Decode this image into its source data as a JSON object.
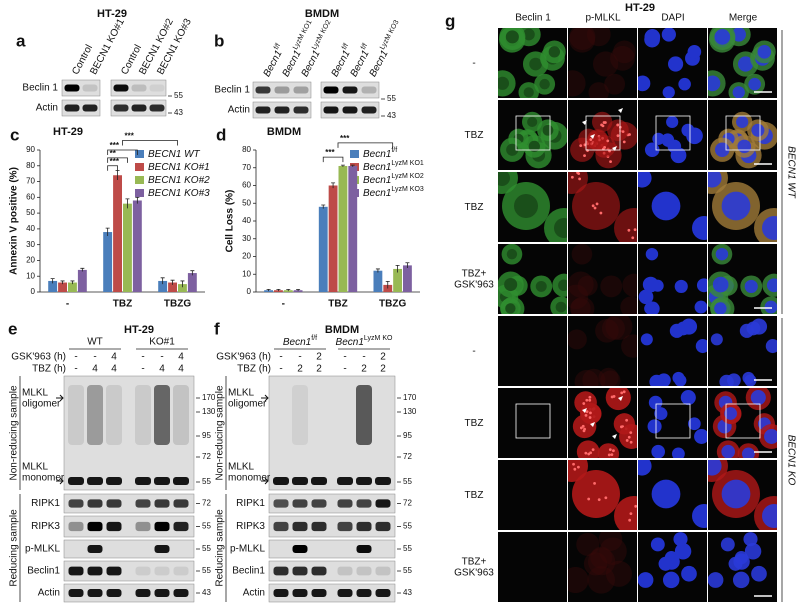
{
  "panels": {
    "a": {
      "letter": "a",
      "title": "HT-29",
      "lanes": [
        "Control",
        "BECN1 KO#1",
        "Control",
        "BECN1 KO#2",
        "BECN1 KO#3"
      ],
      "rows": [
        "Beclin 1",
        "Actin"
      ],
      "markers": [
        55,
        43
      ]
    },
    "b": {
      "letter": "b",
      "title": "BMDM",
      "lanes": [
        {
          "name": "Becn1",
          "sup": "f/f"
        },
        {
          "name": "Becn1",
          "sup": "LyzM KO1"
        },
        {
          "name": "Becn1",
          "sup": "LyzM KO2"
        },
        {
          "name": "Becn1",
          "sup": "f/f"
        },
        {
          "name": "Becn1",
          "sup": "f/f"
        },
        {
          "name": "Becn1",
          "sup": "LyzM KO3"
        }
      ],
      "rows": [
        "Beclin 1",
        "Actin"
      ],
      "markers": [
        55,
        43
      ]
    },
    "c": {
      "letter": "c"
    },
    "d": {
      "letter": "d"
    },
    "e": {
      "letter": "e",
      "title": "HT-29",
      "groups": [
        "WT",
        "KO#1"
      ],
      "conditions": [
        {
          "label": "GSK'963 (h)",
          "values": [
            "-",
            "-",
            "4",
            "-",
            "-",
            "4"
          ]
        },
        {
          "label": "TBZ (h)",
          "values": [
            "-",
            "4",
            "4",
            "-",
            "4",
            "4"
          ]
        }
      ],
      "sections": [
        "Non-reducing sample",
        "Reducing sample"
      ],
      "oligomer": [
        "MLKL",
        "oligomer"
      ],
      "monomer": [
        "MLKL",
        "monomer"
      ],
      "nonreducing_markers": [
        170,
        130,
        95,
        72,
        55
      ],
      "rows": [
        {
          "label": "RIPK1",
          "marker": 72
        },
        {
          "label": "RIPK3",
          "marker": 55
        },
        {
          "label": "p-MLKL",
          "marker": 55
        },
        {
          "label": "Beclin1",
          "marker": 55
        },
        {
          "label": "Actin",
          "marker": 43
        }
      ]
    },
    "f": {
      "letter": "f",
      "title": "BMDM",
      "groups": [
        {
          "name": "Becn1",
          "sup": "f/f"
        },
        {
          "name": "Becn1",
          "sup": "LyzM KO"
        }
      ],
      "conditions": [
        {
          "label": "GSK'963 (h)",
          "values": [
            "-",
            "-",
            "2",
            "-",
            "-",
            "2"
          ]
        },
        {
          "label": "TBZ (h)",
          "values": [
            "-",
            "2",
            "2",
            "-",
            "2",
            "2"
          ]
        }
      ],
      "sections": [
        "Non-reducing sample",
        "Reducing sample"
      ],
      "oligomer": [
        "MLKL",
        "oligomer"
      ],
      "monomer": [
        "MLKL",
        "monomer"
      ],
      "nonreducing_markers": [
        170,
        130,
        95,
        72,
        55
      ],
      "rows": [
        {
          "label": "RIPK1",
          "marker": 72
        },
        {
          "label": "RIPK3",
          "marker": 55
        },
        {
          "label": "p-MLKL",
          "marker": 55
        },
        {
          "label": "Beclin1",
          "marker": 55
        },
        {
          "label": "Actin",
          "marker": 43
        }
      ]
    },
    "g": {
      "letter": "g",
      "title": "HT-29",
      "columns": [
        "Beclin 1",
        "p-MLKL",
        "DAPI",
        "Merge"
      ],
      "rows": [
        [
          "-"
        ],
        [
          "TBZ"
        ],
        [
          "TBZ"
        ],
        [
          "TBZ+",
          "GSK'963"
        ],
        [
          "-"
        ],
        [
          "TBZ"
        ],
        [
          "TBZ"
        ],
        [
          "TBZ+",
          "GSK'963"
        ]
      ],
      "groups": [
        "BECN1 WT",
        "BECN1 KO"
      ]
    }
  },
  "chart_data": [
    {
      "type": "bar",
      "title": "HT-29",
      "ylabel": "Annexin V positive (%)",
      "categories": [
        "-",
        "TBZ",
        "TBZG"
      ],
      "series": [
        {
          "name": "BECN1 WT",
          "color": "#4a7ebb",
          "values": [
            7,
            38,
            7
          ],
          "errors": [
            1.5,
            2.5,
            2
          ]
        },
        {
          "name": "BECN1 KO#1",
          "color": "#be4b48",
          "values": [
            6,
            74,
            6
          ],
          "errors": [
            1,
            3,
            1.5
          ]
        },
        {
          "name": "BECN1 KO#2",
          "color": "#98b954",
          "values": [
            6,
            56,
            5
          ],
          "errors": [
            1,
            3,
            2
          ]
        },
        {
          "name": "BECN1 KO#3",
          "color": "#7d60a0",
          "values": [
            14,
            58,
            12
          ],
          "errors": [
            1,
            2,
            1.5
          ]
        }
      ],
      "ylim": [
        0,
        90
      ],
      "yticks": [
        0,
        10,
        20,
        30,
        40,
        50,
        60,
        70,
        80,
        90
      ],
      "annotations": [
        "***",
        "**",
        "***",
        "***"
      ]
    },
    {
      "type": "bar",
      "title": "BMDM",
      "ylabel": "Cell Loss (%)",
      "categories": [
        "-",
        "TBZ",
        "TBZG"
      ],
      "series": [
        {
          "name": "Becn1",
          "sup": "f/f",
          "color": "#4a7ebb",
          "values": [
            1,
            48,
            12
          ],
          "errors": [
            0.5,
            1,
            1
          ]
        },
        {
          "name": "Becn1",
          "sup": "LyzM KO1",
          "color": "#be4b48",
          "values": [
            1,
            60,
            4
          ],
          "errors": [
            0.5,
            1.5,
            2
          ]
        },
        {
          "name": "Becn1",
          "sup": "LyzM KO2",
          "color": "#98b954",
          "values": [
            1,
            71,
            13
          ],
          "errors": [
            0.5,
            0.5,
            2
          ]
        },
        {
          "name": "Becn1",
          "sup": "LyzM KO3",
          "color": "#7d60a0",
          "values": [
            1,
            71,
            15
          ],
          "errors": [
            0.5,
            0.5,
            1.5
          ]
        }
      ],
      "ylim": [
        0,
        80
      ],
      "yticks": [
        0,
        10,
        20,
        30,
        40,
        50,
        60,
        70,
        80
      ],
      "annotations": [
        "***",
        "***"
      ]
    }
  ]
}
